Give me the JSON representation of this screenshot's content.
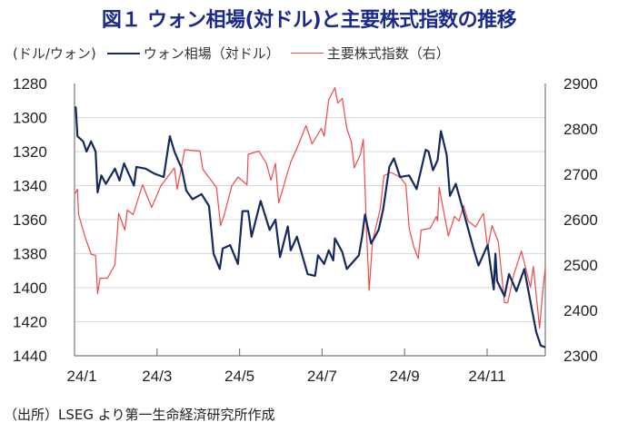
{
  "chart_data": {
    "type": "line",
    "title": "図１ ウォン相場(対ドル)と主要株式指数の推移",
    "left_axis_label": "(ドル/ウォン)",
    "source": "（出所）LSEG より第一生命経済研究所作成",
    "x_unit": "months since 2024-01-01",
    "xlim": [
      0,
      11.4
    ],
    "x_ticks": [
      {
        "value": 0,
        "label": "24/1"
      },
      {
        "value": 2,
        "label": "24/3"
      },
      {
        "value": 4,
        "label": "24/5"
      },
      {
        "value": 6,
        "label": "24/7"
      },
      {
        "value": 8,
        "label": "24/9"
      },
      {
        "value": 10,
        "label": "24/11"
      }
    ],
    "ylim_left": [
      1280,
      1440
    ],
    "left_inverted": true,
    "y_ticks_left": [
      "1280",
      "1300",
      "1320",
      "1340",
      "1360",
      "1380",
      "1400",
      "1420",
      "1440"
    ],
    "ylim_right": [
      2300,
      2900
    ],
    "y_ticks_right": [
      "2900",
      "2800",
      "2700",
      "2600",
      "2500",
      "2400",
      "2300"
    ],
    "grid": true,
    "legend_placement": "top",
    "series": [
      {
        "name": "ウォン相場（対ドル）",
        "axis": "left",
        "color": "#14295e",
        "points": [
          [
            0,
            1294
          ],
          [
            0.03,
            1294
          ],
          [
            0.07,
            1311
          ],
          [
            0.21,
            1314
          ],
          [
            0.29,
            1320
          ],
          [
            0.4,
            1314
          ],
          [
            0.51,
            1320
          ],
          [
            0.56,
            1344
          ],
          [
            0.65,
            1334
          ],
          [
            0.76,
            1339
          ],
          [
            0.98,
            1330
          ],
          [
            1.09,
            1337
          ],
          [
            1.2,
            1327
          ],
          [
            1.44,
            1340
          ],
          [
            1.5,
            1329
          ],
          [
            1.72,
            1330
          ],
          [
            1.94,
            1333
          ],
          [
            2.16,
            1335
          ],
          [
            2.31,
            1311
          ],
          [
            2.42,
            1320
          ],
          [
            2.6,
            1330
          ],
          [
            2.71,
            1343
          ],
          [
            2.86,
            1348
          ],
          [
            3.08,
            1345
          ],
          [
            3.26,
            1352
          ],
          [
            3.37,
            1380
          ],
          [
            3.52,
            1389
          ],
          [
            3.59,
            1377
          ],
          [
            3.77,
            1375
          ],
          [
            3.96,
            1386
          ],
          [
            4.07,
            1355
          ],
          [
            4.21,
            1355
          ],
          [
            4.29,
            1370
          ],
          [
            4.51,
            1349
          ],
          [
            4.73,
            1366
          ],
          [
            4.87,
            1360
          ],
          [
            4.98,
            1382
          ],
          [
            5.17,
            1364
          ],
          [
            5.24,
            1378
          ],
          [
            5.39,
            1370
          ],
          [
            5.65,
            1392
          ],
          [
            5.83,
            1393
          ],
          [
            5.9,
            1381
          ],
          [
            6.05,
            1386
          ],
          [
            6.16,
            1378
          ],
          [
            6.27,
            1384
          ],
          [
            6.31,
            1371
          ],
          [
            6.49,
            1379
          ],
          [
            6.6,
            1389
          ],
          [
            6.89,
            1381
          ],
          [
            6.97,
            1370
          ],
          [
            7.04,
            1357
          ],
          [
            7.19,
            1374
          ],
          [
            7.37,
            1366
          ],
          [
            7.48,
            1354
          ],
          [
            7.63,
            1329
          ],
          [
            7.74,
            1324
          ],
          [
            7.89,
            1335
          ],
          [
            8.11,
            1334
          ],
          [
            8.29,
            1342
          ],
          [
            8.51,
            1319
          ],
          [
            8.58,
            1320
          ],
          [
            8.69,
            1331
          ],
          [
            8.8,
            1325
          ],
          [
            8.88,
            1308
          ],
          [
            9.02,
            1322
          ],
          [
            9.1,
            1346
          ],
          [
            9.24,
            1339
          ],
          [
            9.39,
            1352
          ],
          [
            9.68,
            1378
          ],
          [
            9.79,
            1387
          ],
          [
            10.01,
            1375
          ],
          [
            10.16,
            1401
          ],
          [
            10.2,
            1380
          ],
          [
            10.24,
            1396
          ],
          [
            10.42,
            1405
          ],
          [
            10.53,
            1392
          ],
          [
            10.71,
            1402
          ],
          [
            10.9,
            1389
          ],
          [
            11.08,
            1412
          ],
          [
            11.19,
            1426
          ],
          [
            11.3,
            1434
          ],
          [
            11.41,
            1435
          ]
        ]
      },
      {
        "name": "主要株式指数（右）",
        "axis": "right",
        "color": "#f0484b",
        "points": [
          [
            0.01,
            2657
          ],
          [
            0.07,
            2667
          ],
          [
            0.1,
            2611
          ],
          [
            0.25,
            2564
          ],
          [
            0.4,
            2524
          ],
          [
            0.51,
            2521
          ],
          [
            0.56,
            2437
          ],
          [
            0.62,
            2471
          ],
          [
            0.8,
            2471
          ],
          [
            0.98,
            2501
          ],
          [
            1.07,
            2614
          ],
          [
            1.22,
            2577
          ],
          [
            1.28,
            2621
          ],
          [
            1.42,
            2611
          ],
          [
            1.65,
            2677
          ],
          [
            1.87,
            2627
          ],
          [
            2.09,
            2674
          ],
          [
            2.42,
            2714
          ],
          [
            2.49,
            2667
          ],
          [
            2.67,
            2754
          ],
          [
            3.04,
            2751
          ],
          [
            3.11,
            2711
          ],
          [
            3.44,
            2671
          ],
          [
            3.54,
            2587
          ],
          [
            3.63,
            2611
          ],
          [
            3.81,
            2674
          ],
          [
            3.96,
            2694
          ],
          [
            4.18,
            2677
          ],
          [
            4.21,
            2744
          ],
          [
            4.47,
            2751
          ],
          [
            4.65,
            2724
          ],
          [
            4.76,
            2687
          ],
          [
            4.87,
            2724
          ],
          [
            4.95,
            2637
          ],
          [
            5.09,
            2681
          ],
          [
            5.24,
            2727
          ],
          [
            5.39,
            2757
          ],
          [
            5.61,
            2807
          ],
          [
            5.76,
            2767
          ],
          [
            5.98,
            2801
          ],
          [
            6.05,
            2784
          ],
          [
            6.16,
            2864
          ],
          [
            6.31,
            2891
          ],
          [
            6.38,
            2857
          ],
          [
            6.49,
            2867
          ],
          [
            6.6,
            2801
          ],
          [
            6.71,
            2771
          ],
          [
            6.78,
            2714
          ],
          [
            6.93,
            2744
          ],
          [
            7.0,
            2777
          ],
          [
            7.08,
            2571
          ],
          [
            7.14,
            2444
          ],
          [
            7.22,
            2551
          ],
          [
            7.41,
            2624
          ],
          [
            7.5,
            2697
          ],
          [
            7.67,
            2704
          ],
          [
            7.89,
            2694
          ],
          [
            8.03,
            2677
          ],
          [
            8.11,
            2581
          ],
          [
            8.22,
            2541
          ],
          [
            8.33,
            2514
          ],
          [
            8.4,
            2577
          ],
          [
            8.62,
            2581
          ],
          [
            8.77,
            2607
          ],
          [
            8.8,
            2597
          ],
          [
            8.84,
            2671
          ],
          [
            8.95,
            2617
          ],
          [
            9.06,
            2564
          ],
          [
            9.21,
            2607
          ],
          [
            9.32,
            2597
          ],
          [
            9.43,
            2631
          ],
          [
            9.54,
            2597
          ],
          [
            9.72,
            2584
          ],
          [
            9.91,
            2614
          ],
          [
            10.01,
            2537
          ],
          [
            10.12,
            2587
          ],
          [
            10.27,
            2551
          ],
          [
            10.42,
            2417
          ],
          [
            10.5,
            2417
          ],
          [
            10.64,
            2477
          ],
          [
            10.83,
            2531
          ],
          [
            10.94,
            2491
          ],
          [
            11.05,
            2451
          ],
          [
            11.12,
            2497
          ],
          [
            11.27,
            2361
          ],
          [
            11.35,
            2444
          ],
          [
            11.41,
            2494
          ]
        ]
      }
    ]
  }
}
